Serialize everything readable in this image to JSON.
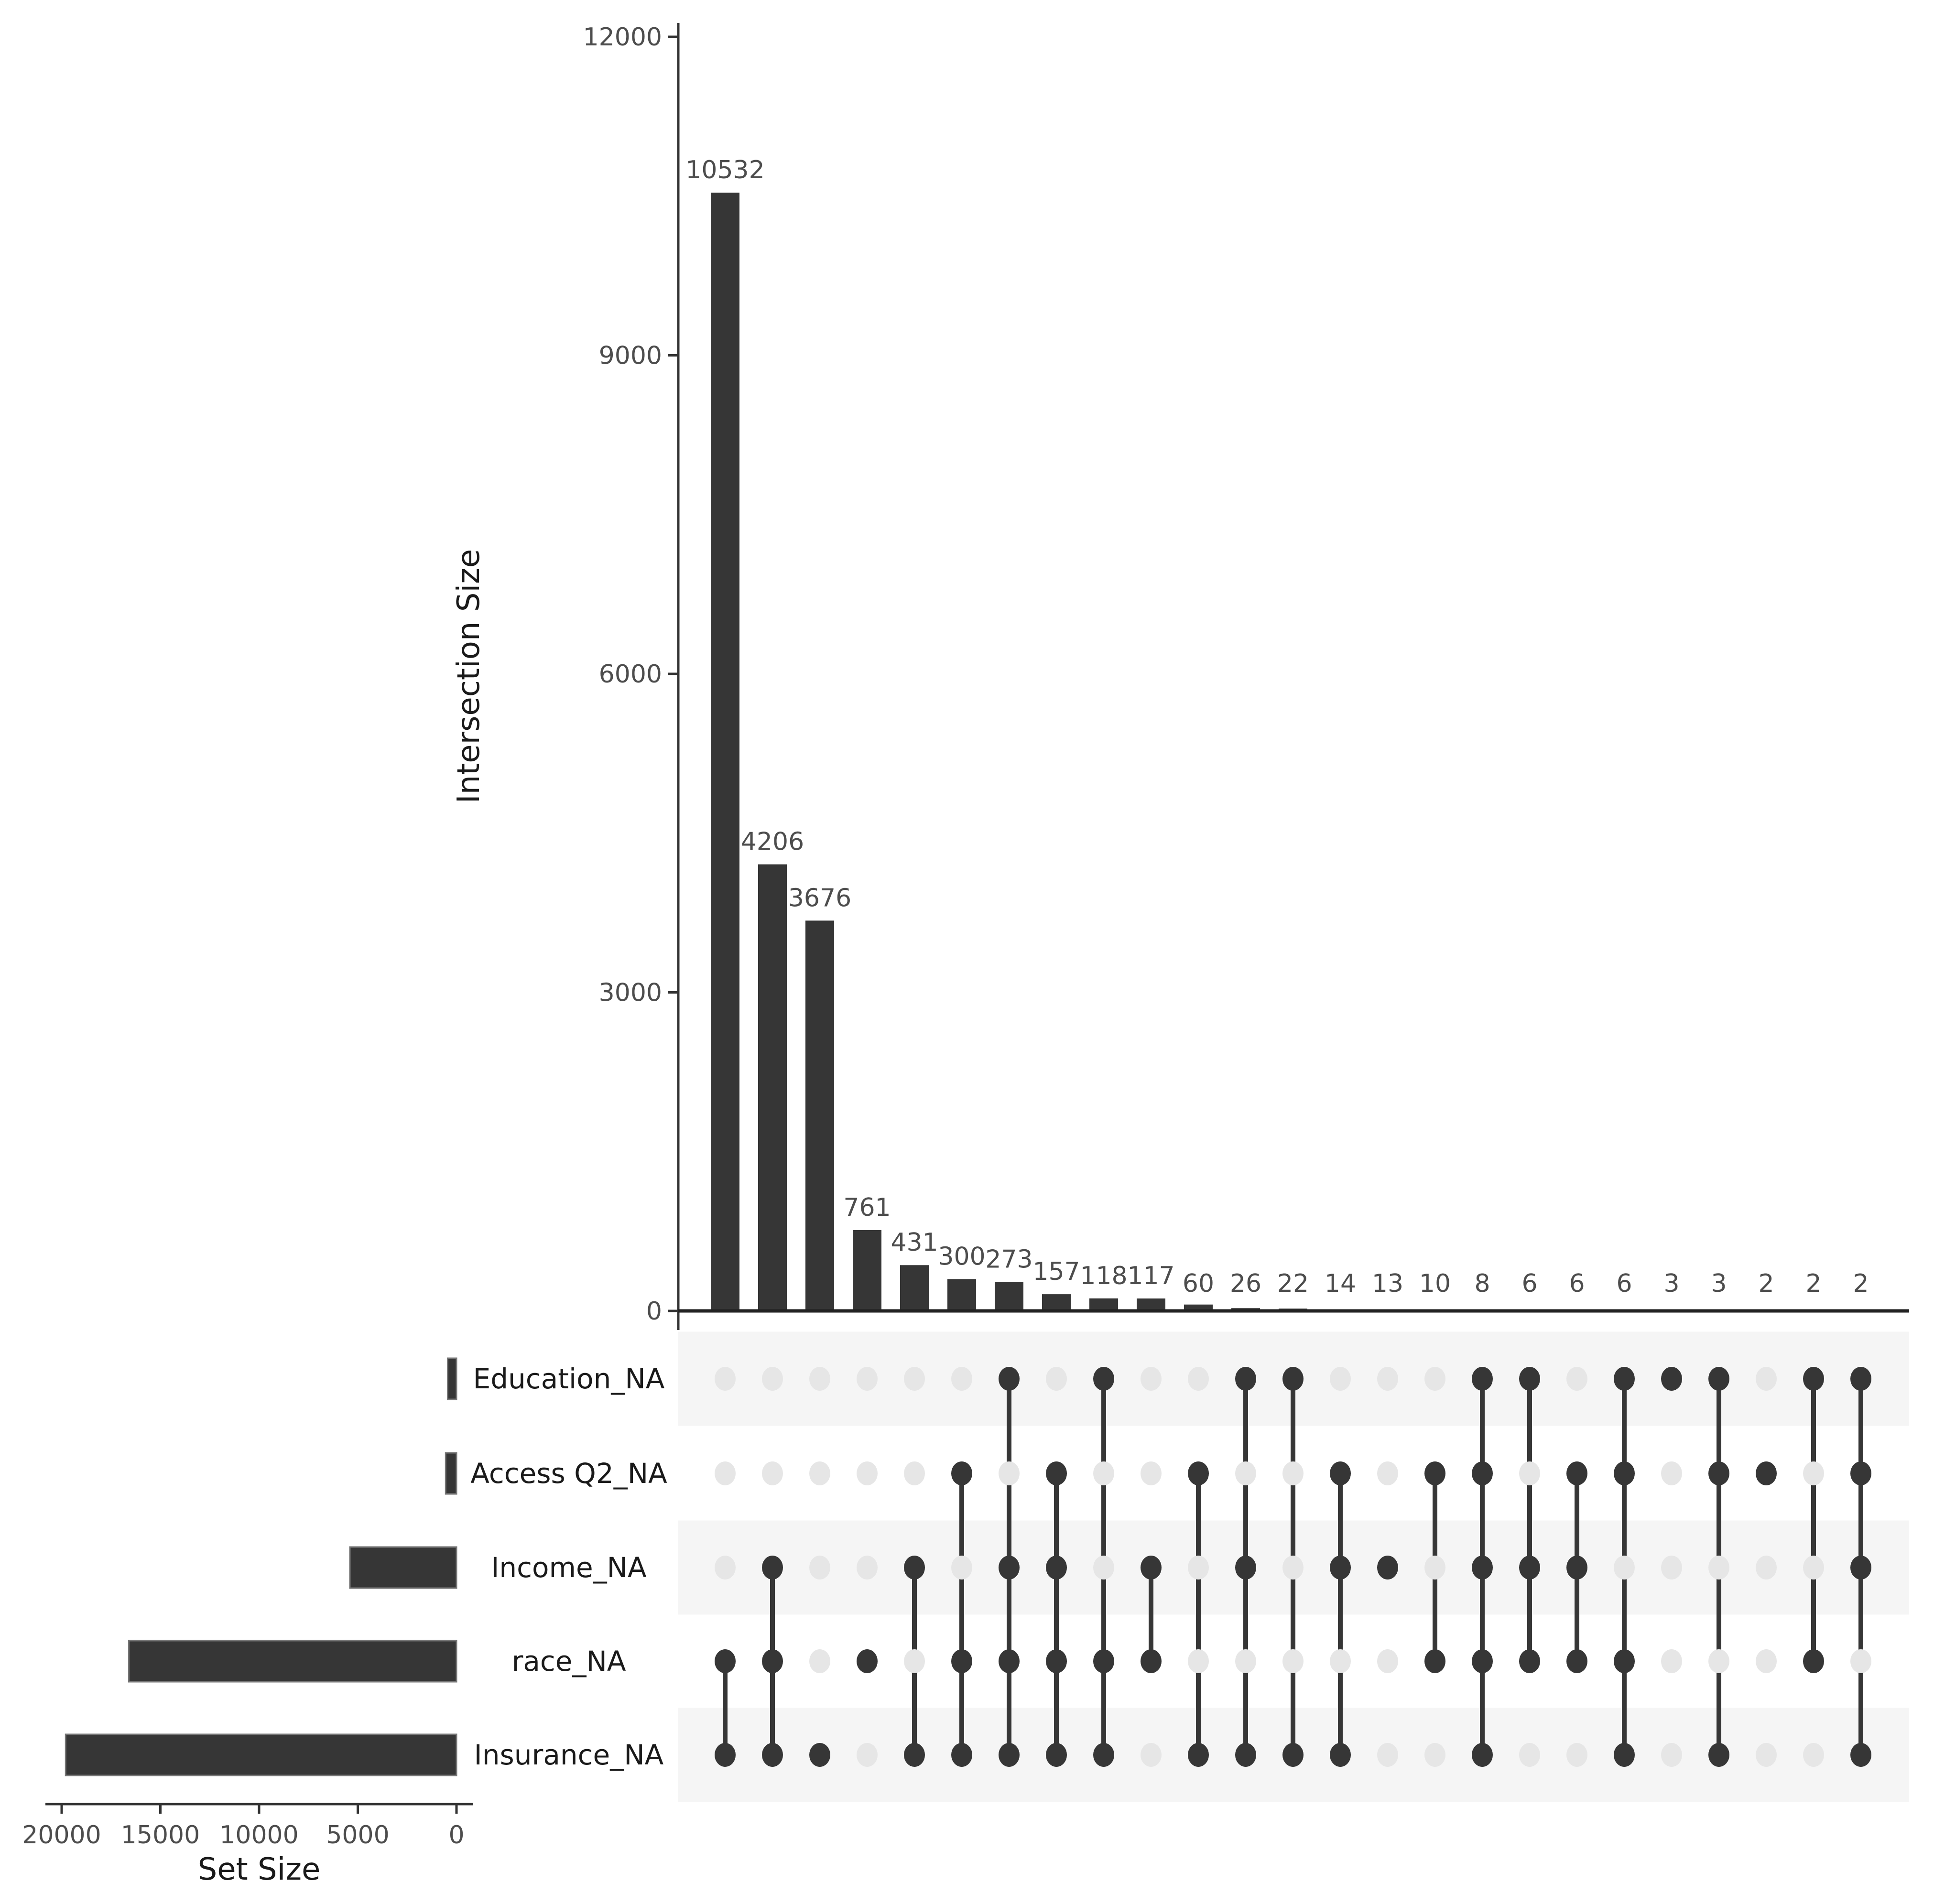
{
  "chart_data": {
    "type": "upset",
    "title": "",
    "intersection_axis": {
      "label": "Intersection Size",
      "ylim": [
        0,
        12000
      ],
      "ticks": [
        0,
        3000,
        6000,
        9000,
        12000
      ]
    },
    "set_size_axis": {
      "label": "Set Size",
      "xlim": [
        20000,
        0
      ],
      "ticks": [
        20000,
        15000,
        10000,
        5000,
        0
      ]
    },
    "sets": [
      {
        "name": "Education_NA",
        "size": 450
      },
      {
        "name": "Access Q2_NA",
        "size": 550
      },
      {
        "name": "Income_NA",
        "size": 5400
      },
      {
        "name": "race_NA",
        "size": 16600
      },
      {
        "name": "Insurance_NA",
        "size": 19800
      }
    ],
    "intersections": [
      {
        "size": 10532,
        "sets": [
          "race_NA",
          "Insurance_NA"
        ]
      },
      {
        "size": 4206,
        "sets": [
          "Income_NA",
          "race_NA",
          "Insurance_NA"
        ]
      },
      {
        "size": 3676,
        "sets": [
          "Insurance_NA"
        ]
      },
      {
        "size": 761,
        "sets": [
          "race_NA"
        ]
      },
      {
        "size": 431,
        "sets": [
          "Income_NA",
          "Insurance_NA"
        ]
      },
      {
        "size": 300,
        "sets": [
          "Access Q2_NA",
          "race_NA",
          "Insurance_NA"
        ]
      },
      {
        "size": 273,
        "sets": [
          "Education_NA",
          "Income_NA",
          "race_NA",
          "Insurance_NA"
        ]
      },
      {
        "size": 157,
        "sets": [
          "Access Q2_NA",
          "Income_NA",
          "race_NA",
          "Insurance_NA"
        ]
      },
      {
        "size": 118,
        "sets": [
          "Education_NA",
          "race_NA",
          "Insurance_NA"
        ]
      },
      {
        "size": 117,
        "sets": [
          "Income_NA",
          "race_NA"
        ]
      },
      {
        "size": 60,
        "sets": [
          "Access Q2_NA",
          "Insurance_NA"
        ]
      },
      {
        "size": 26,
        "sets": [
          "Education_NA",
          "Income_NA",
          "Insurance_NA"
        ]
      },
      {
        "size": 22,
        "sets": [
          "Education_NA",
          "Insurance_NA"
        ]
      },
      {
        "size": 14,
        "sets": [
          "Access Q2_NA",
          "Income_NA",
          "Insurance_NA"
        ]
      },
      {
        "size": 13,
        "sets": [
          "Income_NA"
        ]
      },
      {
        "size": 10,
        "sets": [
          "Access Q2_NA",
          "race_NA"
        ]
      },
      {
        "size": 8,
        "sets": [
          "Education_NA",
          "Access Q2_NA",
          "Income_NA",
          "race_NA",
          "Insurance_NA"
        ]
      },
      {
        "size": 6,
        "sets": [
          "Education_NA",
          "Income_NA",
          "race_NA"
        ]
      },
      {
        "size": 6,
        "sets": [
          "Access Q2_NA",
          "Income_NA",
          "race_NA"
        ]
      },
      {
        "size": 6,
        "sets": [
          "Education_NA",
          "Access Q2_NA",
          "race_NA",
          "Insurance_NA"
        ]
      },
      {
        "size": 3,
        "sets": [
          "Education_NA"
        ]
      },
      {
        "size": 3,
        "sets": [
          "Education_NA",
          "Access Q2_NA",
          "Insurance_NA"
        ]
      },
      {
        "size": 2,
        "sets": [
          "Access Q2_NA"
        ]
      },
      {
        "size": 2,
        "sets": [
          "Education_NA",
          "race_NA"
        ]
      },
      {
        "size": 2,
        "sets": [
          "Education_NA",
          "Access Q2_NA",
          "Income_NA",
          "Insurance_NA"
        ]
      }
    ],
    "colors": {
      "bar": "#363636",
      "dot_active": "#363636",
      "dot_inactive": "#e6e6e6",
      "band": "#f5f5f5"
    },
    "grid": false
  }
}
